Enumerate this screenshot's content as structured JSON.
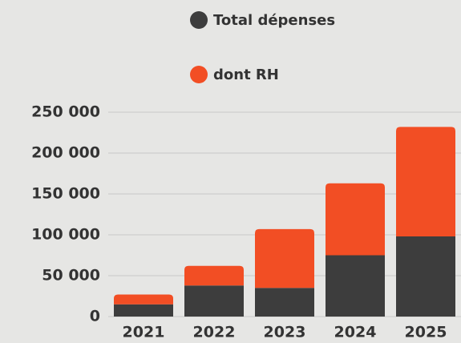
{
  "chart_data": {
    "type": "bar",
    "stacked": true,
    "categories": [
      "2021",
      "2022",
      "2023",
      "2024",
      "2025"
    ],
    "series": [
      {
        "name": "Total dépenses",
        "color": "#3d3d3d",
        "values": [
          15000,
          38000,
          35000,
          75000,
          98000
        ]
      },
      {
        "name": "dont RH",
        "color": "#f24e24",
        "values": [
          12000,
          24000,
          72000,
          88000,
          134000
        ]
      }
    ],
    "ylim": [
      0,
      250000
    ],
    "yticks": [
      0,
      {
        "value": 50000,
        "label": "50 000"
      },
      {
        "value": 100000,
        "label": "100 000"
      },
      {
        "value": 150000,
        "label": "150 000"
      },
      {
        "value": 200000,
        "label": "200 000"
      },
      {
        "value": 250000,
        "label": "250 000"
      }
    ],
    "grid": true
  }
}
